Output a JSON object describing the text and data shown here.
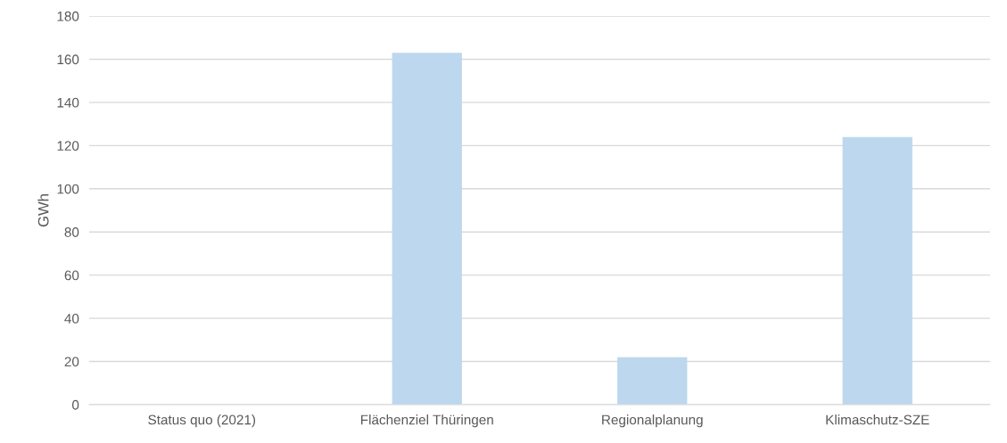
{
  "chart_data": {
    "type": "bar",
    "ylabel": "GWh",
    "categories": [
      "Status quo (2021)",
      "Flächenziel Thüringen",
      "Regionalplanung",
      "Klimaschutz-SZE"
    ],
    "values": [
      0,
      163,
      22,
      124
    ],
    "color": "#bdd7ee",
    "ylim": [
      0,
      180
    ],
    "yticks": [
      0,
      20,
      40,
      60,
      80,
      100,
      120,
      140,
      160,
      180
    ],
    "grid": "y"
  }
}
